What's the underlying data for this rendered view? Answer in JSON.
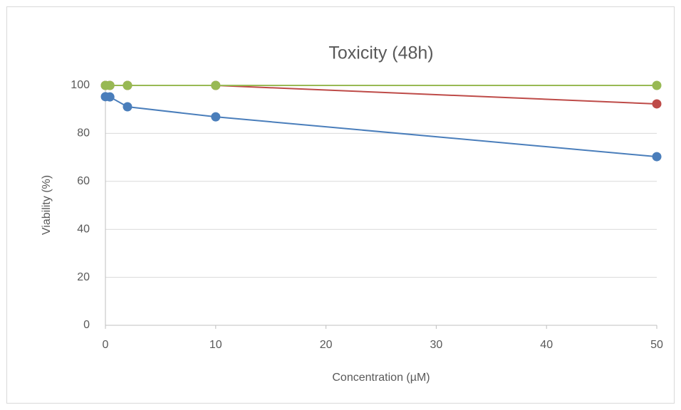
{
  "chart_data": {
    "type": "line",
    "title": "Toxicity (48h)",
    "x_label": "Concentration (µM)",
    "y_label": "Viability (%)",
    "x": [
      0,
      0.4,
      2,
      10,
      50
    ],
    "series": [
      {
        "color": "#4a7ebb",
        "values": [
          95.3,
          95.2,
          91.1,
          86.9,
          70.3
        ]
      },
      {
        "color": "#be4b48",
        "values": [
          100,
          100,
          100,
          100,
          92.3
        ]
      },
      {
        "color": "#98b954",
        "values": [
          100,
          100,
          100,
          100,
          100
        ]
      }
    ],
    "xlim": [
      0,
      50
    ],
    "xticks": [
      0,
      10,
      20,
      30,
      40,
      50
    ],
    "ylim": [
      0,
      100
    ],
    "yticks": [
      0,
      20,
      40,
      60,
      80,
      100
    ],
    "grid": true
  }
}
